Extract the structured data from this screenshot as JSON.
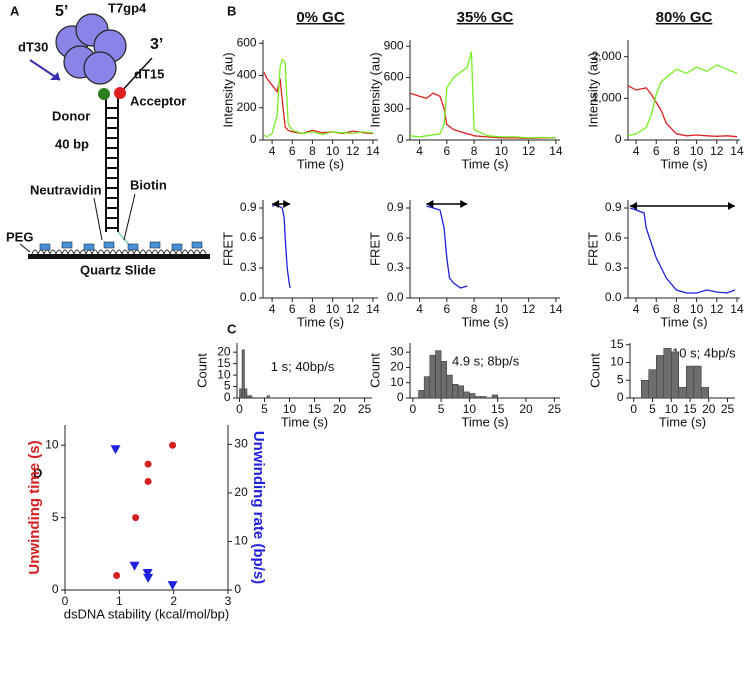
{
  "panel_labels": [
    "A",
    "B",
    "C",
    "D"
  ],
  "diagram": {
    "five_prime": "5’",
    "protein": "T7gp4",
    "tail": "dT30",
    "three_prime": "3’",
    "other_tail": "dT15",
    "donor": "Donor",
    "acceptor": "Acceptor",
    "duplex": "40 bp",
    "neutravidin": "Neutravidin",
    "biotin": "Biotin",
    "peg": "PEG",
    "slide": "Quartz Slide"
  },
  "chart_data": [
    {
      "type": "line",
      "title": "0% GC",
      "xlabel": "Time (s)",
      "ylabel": "Intensity (au)",
      "x": [
        3.2,
        3.5,
        4,
        4.5,
        4.8,
        5,
        5.3,
        5.6,
        6,
        7,
        8,
        9,
        10,
        11,
        12,
        13,
        14
      ],
      "series": [
        {
          "color": "#e02020",
          "values": [
            420,
            380,
            340,
            300,
            380,
            250,
            80,
            60,
            50,
            40,
            60,
            45,
            50,
            40,
            55,
            45,
            40
          ]
        },
        {
          "color": "#77ee22",
          "values": [
            30,
            20,
            40,
            150,
            450,
            500,
            480,
            100,
            60,
            40,
            50,
            35,
            50,
            45,
            40,
            50,
            45
          ]
        }
      ],
      "xlim": [
        3.1,
        14.5
      ],
      "xticks": [
        4,
        6,
        8,
        10,
        12,
        14
      ],
      "ylim": [
        0,
        620
      ],
      "yticks": [
        0,
        200,
        400,
        600
      ]
    },
    {
      "type": "line",
      "title": "35% GC",
      "xlabel": "Time (s)",
      "ylabel": "Intensity (au)",
      "x": [
        3.3,
        4,
        4.5,
        5,
        5.5,
        5.8,
        6,
        6.5,
        7,
        7.5,
        7.8,
        8,
        9,
        10,
        11,
        12,
        13,
        14
      ],
      "series": [
        {
          "color": "#e02020",
          "values": [
            450,
            420,
            400,
            450,
            420,
            300,
            150,
            100,
            80,
            60,
            50,
            40,
            30,
            20,
            20,
            15,
            20,
            20
          ]
        },
        {
          "color": "#77ee22",
          "values": [
            40,
            30,
            40,
            50,
            60,
            150,
            500,
            600,
            650,
            700,
            850,
            100,
            40,
            30,
            30,
            20,
            25,
            20
          ]
        }
      ],
      "xlim": [
        3.3,
        14.3
      ],
      "xticks": [
        4,
        6,
        8,
        10,
        12,
        14
      ],
      "ylim": [
        0,
        960
      ],
      "yticks": [
        0,
        300,
        600,
        900
      ]
    },
    {
      "type": "line",
      "title": "80% GC",
      "xlabel": "Time (s)",
      "ylabel": "Intensity (au)",
      "x": [
        3.2,
        4,
        5,
        5.5,
        6,
        6.5,
        7,
        8,
        9,
        10,
        11,
        12,
        13,
        14
      ],
      "series": [
        {
          "color": "#e02020",
          "values": [
            1300,
            1200,
            1250,
            1100,
            900,
            700,
            400,
            150,
            100,
            120,
            100,
            90,
            100,
            80
          ]
        },
        {
          "color": "#77ee22",
          "values": [
            100,
            150,
            300,
            600,
            1100,
            1400,
            1500,
            1700,
            1600,
            1750,
            1650,
            1800,
            1700,
            1600
          ]
        }
      ],
      "xlim": [
        3.2,
        14.3
      ],
      "xticks": [
        4,
        6,
        8,
        10,
        12,
        14
      ],
      "ylim": [
        0,
        2400
      ],
      "yticks": [
        0,
        {
          "value": 1000,
          "label": "1,000"
        },
        {
          "value": 2000,
          "label": "2,000"
        }
      ]
    },
    {
      "type": "line",
      "xlabel": "Time (s)",
      "ylabel": "FRET",
      "x": [
        4,
        4.5,
        5,
        5.2,
        5.3,
        5.5,
        5.7,
        5.8
      ],
      "series": [
        {
          "color": "#2020dd",
          "values": [
            0.92,
            0.93,
            0.9,
            0.8,
            0.6,
            0.3,
            0.15,
            0.1
          ]
        }
      ],
      "xlim": [
        3.1,
        14.5
      ],
      "xticks": [
        4,
        6,
        8,
        10,
        12,
        14
      ],
      "ylim": [
        0,
        0.98
      ],
      "yticks": [
        {
          "value": 0,
          "label": "0.0"
        },
        {
          "value": 0.3,
          "label": "0.3"
        },
        {
          "value": 0.6,
          "label": "0.6"
        },
        {
          "value": 0.9,
          "label": "0.9"
        }
      ]
    },
    {
      "type": "line",
      "xlabel": "Time (s)",
      "ylabel": "FRET",
      "x": [
        4.5,
        5,
        5.5,
        5.8,
        6,
        6.2,
        6.5,
        7,
        7.5
      ],
      "series": [
        {
          "color": "#2020dd",
          "values": [
            0.92,
            0.9,
            0.88,
            0.7,
            0.4,
            0.2,
            0.15,
            0.1,
            0.12
          ]
        }
      ],
      "xlim": [
        3.3,
        14.3
      ],
      "xticks": [
        4,
        6,
        8,
        10,
        12,
        14
      ],
      "ylim": [
        0,
        0.98
      ],
      "yticks": [
        {
          "value": 0,
          "label": "0.0"
        },
        {
          "value": 0.3,
          "label": "0.3"
        },
        {
          "value": 0.6,
          "label": "0.6"
        },
        {
          "value": 0.9,
          "label": "0.9"
        }
      ]
    },
    {
      "type": "line",
      "xlabel": "Time (s)",
      "ylabel": "FRET",
      "x": [
        3.4,
        4,
        4.8,
        5,
        5.5,
        6,
        6.5,
        7,
        8,
        9,
        10,
        11,
        12,
        13,
        13.8
      ],
      "series": [
        {
          "color": "#2020dd",
          "values": [
            0.9,
            0.88,
            0.85,
            0.7,
            0.55,
            0.4,
            0.3,
            0.2,
            0.08,
            0.05,
            0.05,
            0.08,
            0.06,
            0.05,
            0.08
          ]
        }
      ],
      "xlim": [
        3.2,
        14.3
      ],
      "xticks": [
        4,
        6,
        8,
        10,
        12,
        14
      ],
      "ylim": [
        0,
        0.98
      ],
      "yticks": [
        {
          "value": 0,
          "label": "0.0"
        },
        {
          "value": 0.3,
          "label": "0.3"
        },
        {
          "value": 0.6,
          "label": "0.6"
        },
        {
          "value": 0.9,
          "label": "0.9"
        }
      ]
    },
    {
      "type": "histogram",
      "xlabel": "Time (s)",
      "ylabel": "Count",
      "annotation": "1 s; 40bp/s",
      "bins": [
        0,
        0.5,
        1,
        1.5,
        2,
        2.5,
        3,
        3.5,
        4,
        4.5,
        5,
        5.5,
        6
      ],
      "counts": [
        4,
        21,
        4,
        1,
        1,
        0,
        0,
        0,
        0,
        0,
        0,
        1
      ],
      "color": "#6d6d6d",
      "xlim": [
        -0.5,
        26.5
      ],
      "xticks": [
        0,
        5,
        10,
        15,
        20,
        25
      ],
      "ylim": [
        0,
        24
      ],
      "yticks": [
        0,
        5,
        10,
        15,
        20
      ]
    },
    {
      "type": "histogram",
      "xlabel": "Time (s)",
      "ylabel": "Count",
      "annotation": "4.9 s; 8bp/s",
      "bins": [
        1,
        2,
        3,
        4,
        5,
        6,
        7,
        8,
        9,
        10,
        11,
        12,
        13,
        14,
        15,
        16
      ],
      "counts": [
        5,
        14,
        28,
        31,
        24,
        15,
        9,
        8,
        4,
        3,
        1,
        1,
        0,
        2,
        0
      ],
      "color": "#6d6d6d",
      "xlim": [
        -0.5,
        26
      ],
      "xticks": [
        0,
        5,
        10,
        15,
        20,
        25
      ],
      "ylim": [
        0,
        36
      ],
      "yticks": [
        0,
        10,
        20,
        30
      ]
    },
    {
      "type": "histogram",
      "xlabel": "Time (s)",
      "ylabel": "Count",
      "annotation": "10 s; 4bp/s",
      "bins": [
        2,
        4,
        6,
        8,
        10,
        12,
        14,
        16,
        18,
        20,
        22
      ],
      "counts": [
        5,
        8,
        12,
        14,
        13,
        3,
        9,
        9,
        3,
        0
      ],
      "color": "#6d6d6d",
      "xlim": [
        -1,
        27
      ],
      "xticks": [
        0,
        5,
        10,
        15,
        20,
        25
      ],
      "ylim": [
        0,
        15.5
      ],
      "yticks": [
        0,
        5,
        10,
        15
      ]
    },
    {
      "type": "scatter",
      "xlabel": "dsDNA stability (kcal/mol/bp)",
      "ylabel": "Unwinding time (s)",
      "y2label": "Unwinding rate (bp/s)",
      "series": [
        {
          "color": "#d42020",
          "marker": "circle",
          "x": [
            0.95,
            1.3,
            1.53,
            1.53,
            1.98
          ],
          "values": [
            1,
            5,
            7.5,
            8.7,
            10
          ]
        },
        {
          "color": "#2020dd",
          "marker": "triangle",
          "axis": "y2",
          "x": [
            0.93,
            1.28,
            1.52,
            1.53,
            1.98
          ],
          "values": [
            29,
            5,
            3.5,
            2.5,
            1
          ]
        }
      ],
      "xlim": [
        0,
        3
      ],
      "xticks": [
        0,
        1,
        2,
        3
      ],
      "ylim": [
        0,
        11.4
      ],
      "yticks": [
        0,
        5,
        10
      ],
      "y2lim": [
        0,
        34
      ],
      "y2ticks": [
        0,
        10,
        20,
        30
      ]
    }
  ]
}
